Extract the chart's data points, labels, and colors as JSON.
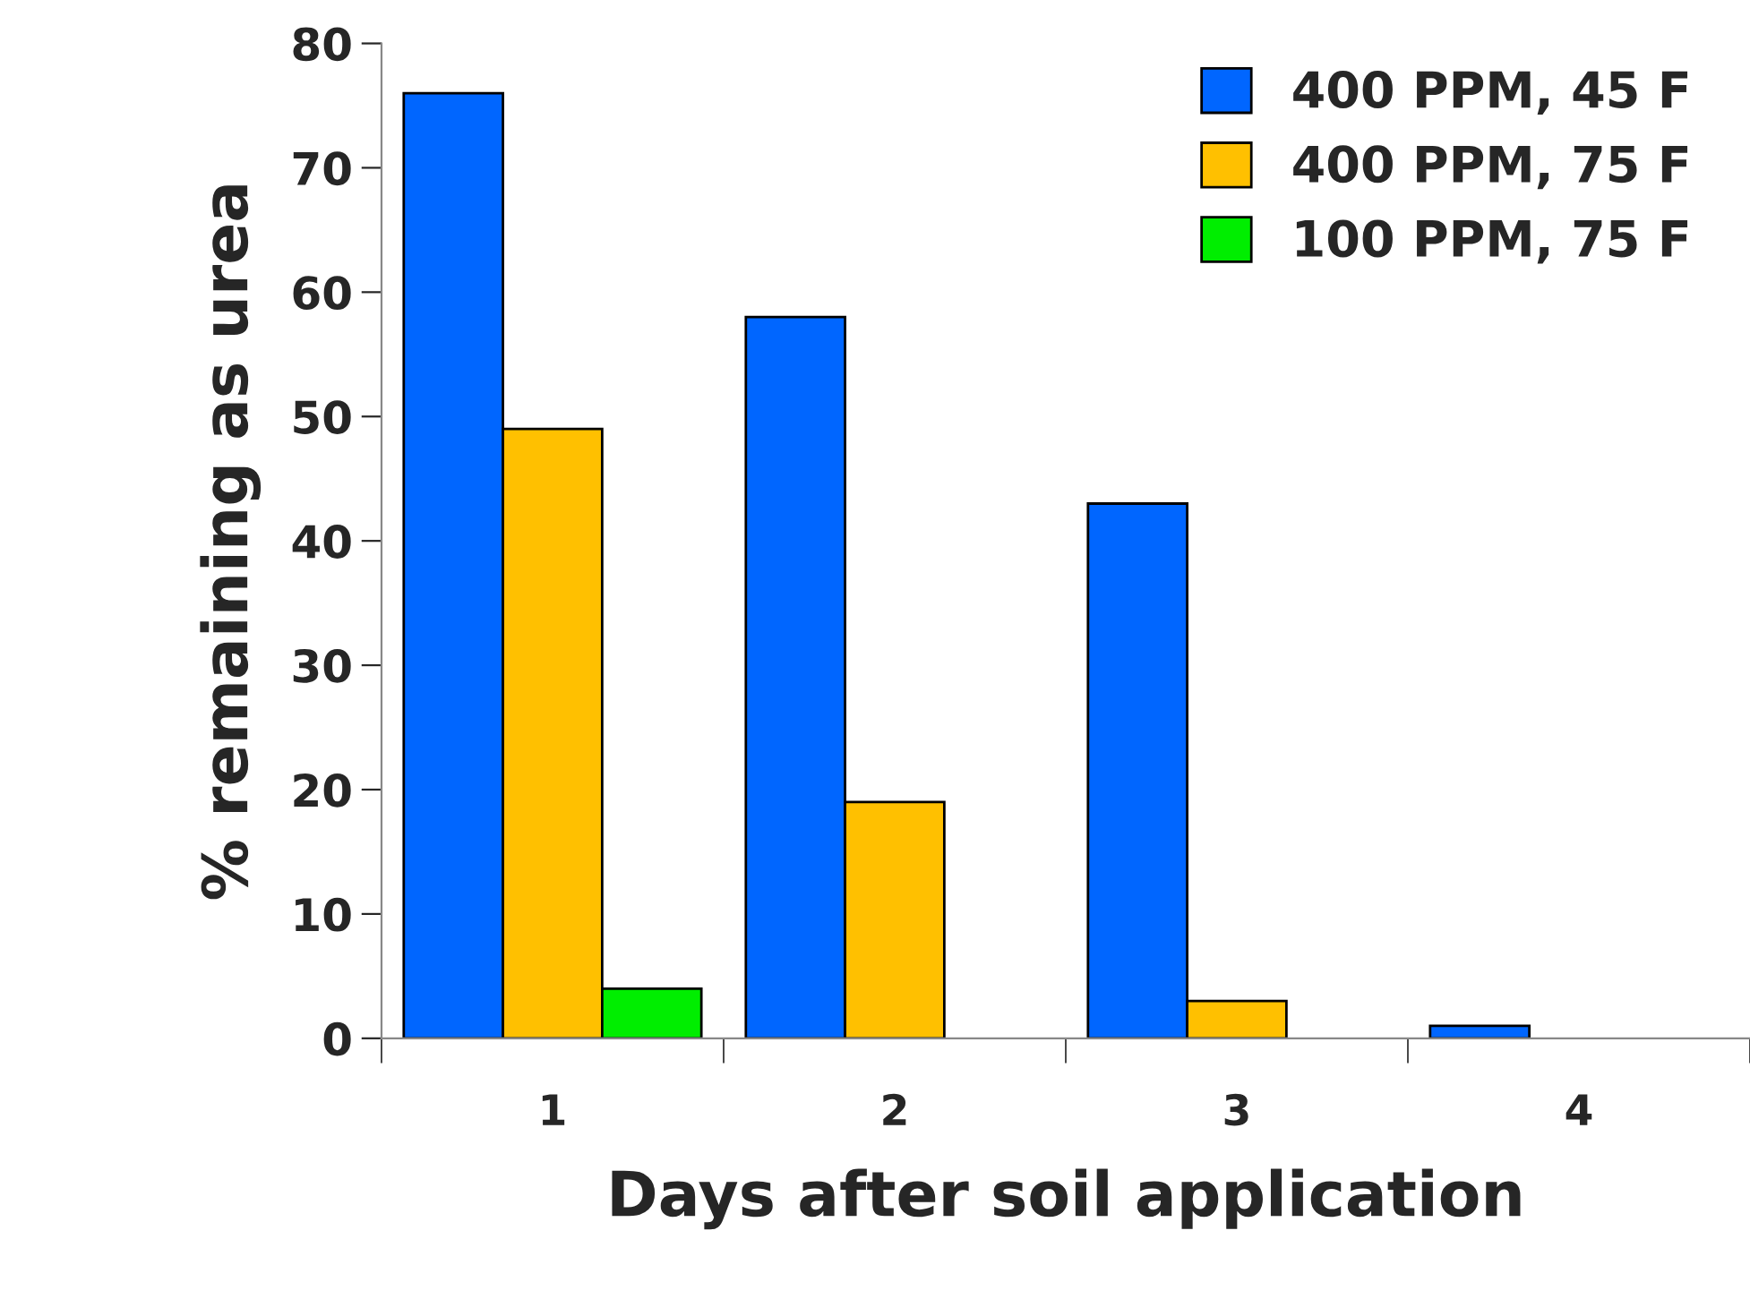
{
  "chart_data": {
    "type": "bar",
    "xlabel": "Days after soil application",
    "ylabel": "% remaining as urea",
    "categories": [
      "1",
      "2",
      "3",
      "4"
    ],
    "series": [
      {
        "name": "400 PPM, 45 F",
        "color": "#0066ff",
        "values": [
          76,
          58,
          43,
          1
        ]
      },
      {
        "name": "400 PPM, 75 F",
        "color": "#ffc000",
        "values": [
          49,
          19,
          3,
          null
        ]
      },
      {
        "name": "100 PPM, 75 F",
        "color": "#00ee00",
        "values": [
          4,
          null,
          null,
          null
        ]
      }
    ],
    "ylim": [
      0,
      80
    ],
    "yticks": [
      0,
      10,
      20,
      30,
      40,
      50,
      60,
      70,
      80
    ],
    "grid": false,
    "legend": "top right"
  }
}
